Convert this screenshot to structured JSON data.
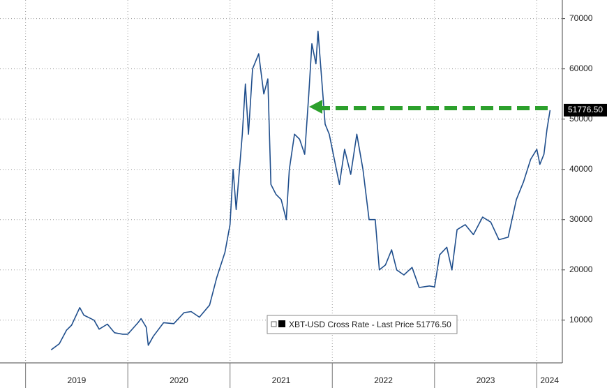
{
  "chart_data": {
    "type": "line",
    "x": [
      2019.25,
      2019.33,
      2019.4,
      2019.45,
      2019.53,
      2019.57,
      2019.62,
      2019.67,
      2019.72,
      2019.8,
      2019.87,
      2019.95,
      2020.0,
      2020.1,
      2020.13,
      2020.18,
      2020.2,
      2020.25,
      2020.35,
      2020.45,
      2020.55,
      2020.62,
      2020.7,
      2020.8,
      2020.87,
      2020.95,
      2021.0,
      2021.03,
      2021.06,
      2021.12,
      2021.15,
      2021.18,
      2021.22,
      2021.28,
      2021.33,
      2021.37,
      2021.4,
      2021.45,
      2021.5,
      2021.55,
      2021.58,
      2021.63,
      2021.68,
      2021.73,
      2021.77,
      2021.8,
      2021.84,
      2021.86,
      2021.9,
      2021.93,
      2021.97,
      2022.02,
      2022.07,
      2022.12,
      2022.18,
      2022.24,
      2022.3,
      2022.36,
      2022.42,
      2022.46,
      2022.52,
      2022.58,
      2022.63,
      2022.7,
      2022.78,
      2022.85,
      2022.95,
      2023.0,
      2023.05,
      2023.12,
      2023.17,
      2023.22,
      2023.3,
      2023.38,
      2023.47,
      2023.55,
      2023.63,
      2023.72,
      2023.8,
      2023.87,
      2023.94,
      2024.0,
      2024.03,
      2024.07,
      2024.1,
      2024.13
    ],
    "series": [
      {
        "name": "XBT-USD Cross Rate - Last Price 51776.50",
        "color": "#1f4e8c",
        "values": [
          4100,
          5300,
          8000,
          9000,
          12500,
          11000,
          10500,
          10000,
          8200,
          9200,
          7500,
          7200,
          7200,
          9500,
          10300,
          8600,
          5000,
          6800,
          9500,
          9300,
          11500,
          11700,
          10600,
          13000,
          18500,
          23500,
          29000,
          40000,
          32000,
          47000,
          57000,
          47000,
          60000,
          63000,
          55000,
          58000,
          37000,
          35000,
          34000,
          30000,
          40000,
          47000,
          46000,
          43000,
          55000,
          65000,
          61000,
          67500,
          57000,
          49000,
          47000,
          42000,
          37000,
          44000,
          39000,
          47000,
          40000,
          30000,
          30000,
          20000,
          21000,
          24000,
          20000,
          19000,
          20500,
          16500,
          16800,
          16600,
          23000,
          24500,
          20000,
          28000,
          29000,
          27000,
          30500,
          29500,
          26000,
          26500,
          34000,
          37500,
          42000,
          44000,
          41000,
          43000,
          48000,
          51776.5
        ]
      }
    ],
    "last_value_label": {
      "value": 51776.5,
      "label": "51776.50"
    },
    "xlim": [
      2018.75,
      2024.25
    ],
    "xticks": [
      2019,
      2020,
      2021,
      2022,
      2023,
      2024
    ],
    "ylim": [
      1500,
      73700
    ],
    "yticks": [
      10000,
      20000,
      30000,
      40000,
      50000,
      60000,
      70000
    ],
    "grid": true
  }
}
